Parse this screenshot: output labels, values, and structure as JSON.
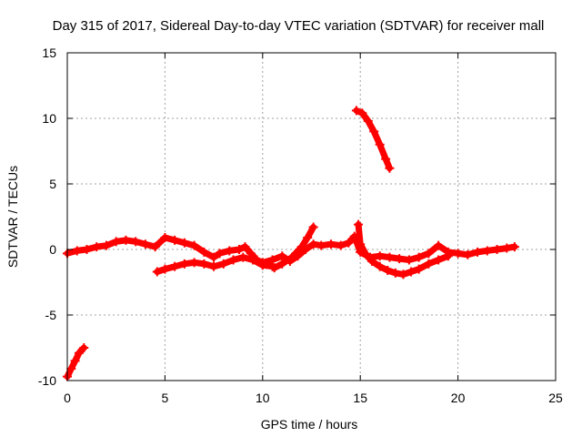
{
  "chart_data": {
    "type": "scatter",
    "title": "Day 315 of 2017, Sidereal Day-to-day VTEC variation (SDTVAR) for receiver mall",
    "xlabel": "GPS time / hours",
    "ylabel": "SDTVAR / TECUs",
    "xlim": [
      0,
      25
    ],
    "ylim": [
      -10,
      15
    ],
    "xticks": [
      0,
      5,
      10,
      15,
      20,
      25
    ],
    "xtick_labels": [
      "0",
      "5",
      "10",
      "15",
      "20",
      "25"
    ],
    "yticks": [
      -10,
      -5,
      0,
      5,
      10,
      15
    ],
    "ytick_labels": [
      "-10",
      "-5",
      "0",
      "5",
      "10",
      "15"
    ],
    "grid": true,
    "marker": "plus",
    "series": [
      {
        "name": "SDTVAR segment 1",
        "color": "#ff0000",
        "x": [
          0.0,
          0.2,
          0.4,
          0.6,
          0.85
        ],
        "y": [
          -9.7,
          -9.1,
          -8.5,
          -7.9,
          -7.5
        ]
      },
      {
        "name": "SDTVAR segment 2",
        "color": "#ff0000",
        "x": [
          0.0,
          0.5,
          1.0,
          1.5,
          2.0,
          2.5,
          3.0,
          3.5,
          4.0,
          4.5,
          5.0,
          5.5,
          6.0,
          6.5,
          7.0,
          7.5,
          7.8,
          8.3,
          8.8,
          9.1,
          9.4,
          9.7,
          10.0,
          10.5,
          11.0,
          11.4,
          11.8,
          12.2,
          12.6,
          13.0,
          13.5,
          14.0,
          14.4,
          14.7,
          15.0,
          15.5,
          16.0,
          16.5,
          17.0,
          17.5,
          18.0,
          18.5,
          19.0,
          19.5,
          20.0,
          20.5,
          21.0,
          21.5,
          22.0,
          22.5,
          22.9
        ],
        "y": [
          -0.3,
          -0.1,
          0.0,
          0.2,
          0.3,
          0.6,
          0.7,
          0.6,
          0.4,
          0.2,
          0.9,
          0.7,
          0.5,
          0.3,
          -0.2,
          -0.6,
          -0.3,
          -0.1,
          0.0,
          0.2,
          -0.3,
          -0.8,
          -1.0,
          -0.8,
          -0.5,
          -0.9,
          -0.5,
          0.0,
          0.4,
          0.3,
          0.4,
          0.3,
          0.5,
          1.0,
          -0.2,
          -0.6,
          -0.5,
          -0.6,
          -0.7,
          -0.8,
          -0.6,
          -0.3,
          0.3,
          -0.2,
          -0.3,
          -0.4,
          -0.2,
          -0.1,
          0.0,
          0.1,
          0.2
        ]
      },
      {
        "name": "SDTVAR segment 3",
        "color": "#ff0000",
        "x": [
          4.6,
          5.0,
          5.5,
          6.0,
          6.5,
          7.0,
          7.5,
          8.0,
          8.5,
          9.0,
          9.5,
          10.0,
          10.5
        ],
        "y": [
          -1.7,
          -1.5,
          -1.3,
          -1.1,
          -1.0,
          -1.1,
          -1.3,
          -1.1,
          -0.8,
          -0.6,
          -0.8,
          -1.2,
          -1.3
        ]
      },
      {
        "name": "SDTVAR segment 4",
        "color": "#ff0000",
        "x": [
          10.6,
          11.0,
          11.5,
          12.0,
          12.3,
          12.6
        ],
        "y": [
          -1.4,
          -1.1,
          -0.6,
          0.2,
          0.9,
          1.7
        ]
      },
      {
        "name": "SDTVAR segment 5",
        "color": "#ff0000",
        "x": [
          14.9,
          15.0,
          15.3,
          15.6,
          16.0,
          16.4,
          16.8,
          17.2,
          17.6,
          18.0,
          18.5,
          19.0,
          19.5
        ],
        "y": [
          1.9,
          0.4,
          -0.4,
          -0.9,
          -1.3,
          -1.6,
          -1.8,
          -1.9,
          -1.7,
          -1.5,
          -1.1,
          -0.8,
          -0.5
        ]
      },
      {
        "name": "SDTVAR segment 6",
        "color": "#ff0000",
        "x": [
          14.8,
          15.1,
          15.4,
          15.7,
          16.0,
          16.3,
          16.5
        ],
        "y": [
          10.6,
          10.4,
          9.8,
          9.0,
          8.0,
          6.9,
          6.2
        ]
      }
    ]
  }
}
